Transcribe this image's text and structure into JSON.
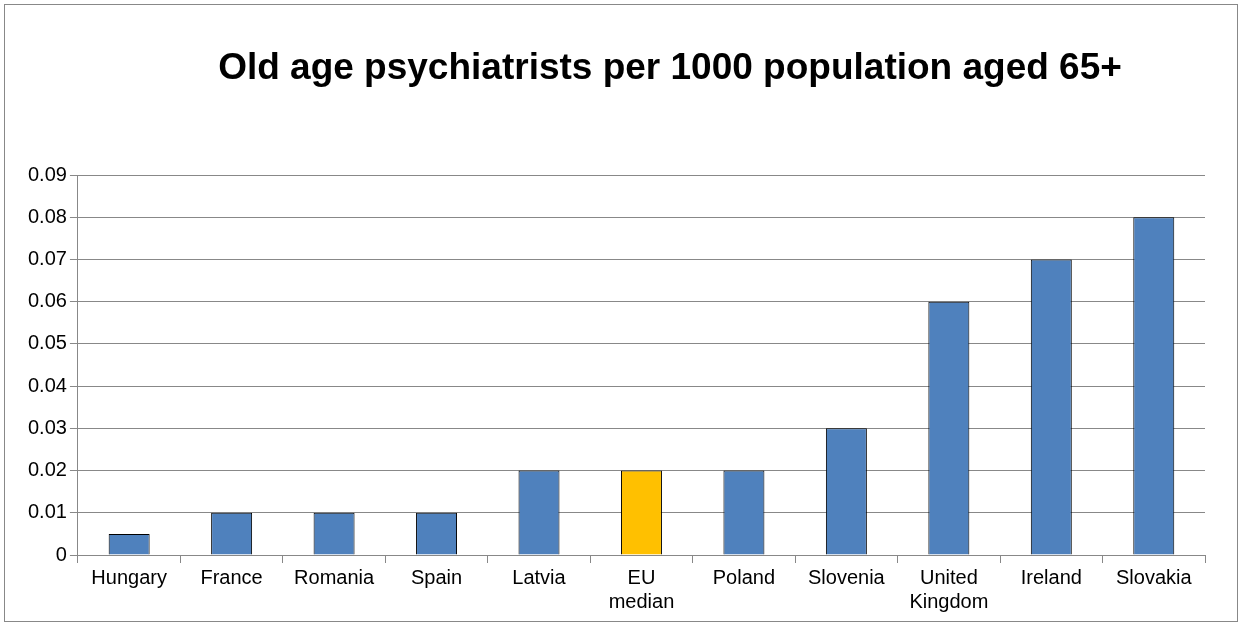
{
  "chart_data": {
    "type": "bar",
    "title": "Old age psychiatrists per 1000 population aged 65+",
    "categories": [
      "Hungary",
      "France",
      "Romania",
      "Spain",
      "Latvia",
      "EU median",
      "Poland",
      "Slovenia",
      "United Kingdom",
      "Ireland",
      "Slovakia"
    ],
    "values": [
      0.005,
      0.01,
      0.01,
      0.01,
      0.02,
      0.02,
      0.02,
      0.03,
      0.06,
      0.07,
      0.08
    ],
    "colors": [
      "#4f81bd",
      "#4f81bd",
      "#4f81bd",
      "#4f81bd",
      "#4f81bd",
      "#ffc000",
      "#4f81bd",
      "#4f81bd",
      "#4f81bd",
      "#4f81bd",
      "#4f81bd"
    ],
    "ylim": [
      0,
      0.09
    ],
    "yticks": [
      0,
      0.01,
      0.02,
      0.03,
      0.04,
      0.05,
      0.06,
      0.07,
      0.08,
      0.09
    ],
    "grid": "y",
    "legend": false
  }
}
